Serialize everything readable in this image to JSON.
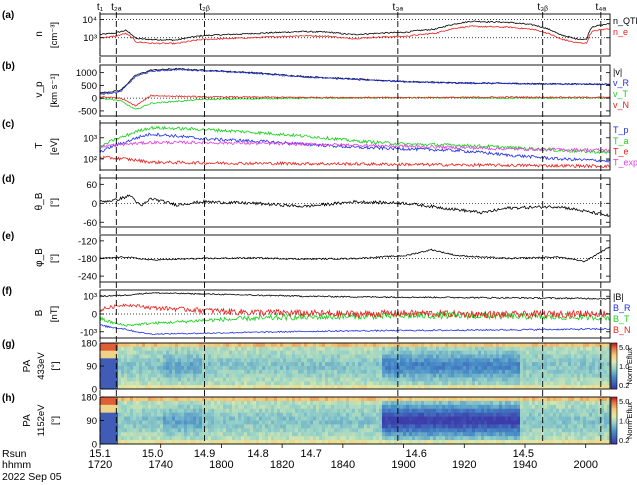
{
  "figure": {
    "date_label": "2022 Sep 05",
    "row_label_rsun": "Rsun",
    "row_label_time": "hhmm"
  },
  "colors": {
    "black": "#000000",
    "red": "#e8201c",
    "blue": "#1e2ee6",
    "green": "#18d018",
    "magenta": "#e040e0",
    "bg": "#ffffff"
  },
  "chart_data": [
    {
      "type": "line",
      "panel": "(a)",
      "ylabel": "n",
      "yunit": "[cm⁻³]",
      "yscale": "log",
      "ylim": [
        100,
        20000
      ],
      "yticks": [
        "10⁴",
        "10³"
      ],
      "dotted_levels": [
        10000,
        1000
      ],
      "series": [
        {
          "name": "n_QTN",
          "color": "black",
          "x": [
            0,
            0.03,
            0.05,
            0.07,
            0.1,
            0.15,
            0.2,
            0.3,
            0.4,
            0.45,
            0.48,
            0.5,
            0.55,
            0.6,
            0.62,
            0.66,
            0.7,
            0.73,
            0.76,
            0.8,
            0.85,
            0.9,
            0.93,
            0.955,
            0.965,
            0.985,
            1.0
          ],
          "y": [
            1500,
            1800,
            2500,
            900,
            800,
            750,
            1300,
            1700,
            2200,
            2000,
            1600,
            1500,
            1800,
            2000,
            2400,
            3000,
            6000,
            8000,
            7500,
            7000,
            5000,
            1500,
            900,
            800,
            4000,
            5000,
            6000
          ]
        },
        {
          "name": "n_e",
          "color": "red",
          "x": [
            0,
            0.03,
            0.05,
            0.07,
            0.1,
            0.15,
            0.2,
            0.3,
            0.4,
            0.45,
            0.48,
            0.5,
            0.55,
            0.6,
            0.62,
            0.66,
            0.7,
            0.73,
            0.76,
            0.8,
            0.85,
            0.9,
            0.93,
            0.955,
            0.965,
            0.985,
            1.0
          ],
          "y": [
            1000,
            1200,
            1700,
            600,
            500,
            480,
            800,
            1000,
            1300,
            1200,
            950,
            900,
            1100,
            1200,
            1400,
            1800,
            3500,
            4200,
            4000,
            3800,
            2800,
            900,
            550,
            500,
            2200,
            2800,
            3200
          ]
        }
      ],
      "legend": [
        "n_QTN",
        "n_e"
      ]
    },
    {
      "type": "line",
      "panel": "(b)",
      "ylabel": "v_p",
      "yunit": "[km s⁻¹]",
      "ylim": [
        -700,
        1300
      ],
      "yticks": [
        1000,
        500,
        0,
        -500
      ],
      "dotted_levels": [
        0
      ],
      "series": [
        {
          "name": "|v|",
          "color": "black",
          "x": [
            0,
            0.04,
            0.07,
            0.1,
            0.15,
            0.2,
            0.3,
            0.4,
            0.5,
            0.6,
            0.7,
            0.8,
            0.9,
            1.0
          ],
          "y": [
            200,
            300,
            900,
            1100,
            1150,
            1100,
            1000,
            850,
            750,
            650,
            600,
            580,
            560,
            550
          ]
        },
        {
          "name": "v_R",
          "color": "blue",
          "x": [
            0,
            0.04,
            0.07,
            0.1,
            0.15,
            0.2,
            0.3,
            0.4,
            0.5,
            0.6,
            0.7,
            0.8,
            0.9,
            1.0
          ],
          "y": [
            150,
            250,
            850,
            1050,
            1120,
            1080,
            980,
            830,
            730,
            640,
            590,
            570,
            550,
            540
          ]
        },
        {
          "name": "v_T",
          "color": "green",
          "x": [
            0,
            0.04,
            0.07,
            0.1,
            0.2,
            0.4,
            0.6,
            0.8,
            1.0
          ],
          "y": [
            0,
            -100,
            -450,
            -200,
            -50,
            0,
            20,
            0,
            10
          ]
        },
        {
          "name": "v_N",
          "color": "red",
          "x": [
            0,
            0.04,
            0.07,
            0.1,
            0.2,
            0.4,
            0.6,
            0.8,
            1.0
          ],
          "y": [
            50,
            0,
            -300,
            100,
            50,
            30,
            20,
            40,
            30
          ]
        }
      ],
      "legend": [
        "|v|",
        "v_R",
        "v_T",
        "v_N"
      ]
    },
    {
      "type": "line",
      "panel": "(c)",
      "ylabel": "T",
      "yunit": "[eV]",
      "yscale": "log",
      "ylim": [
        30,
        5000
      ],
      "yticks": [
        "10³",
        "10²"
      ],
      "series": [
        {
          "name": "T_p",
          "color": "blue",
          "x": [
            0,
            0.05,
            0.1,
            0.2,
            0.3,
            0.4,
            0.5,
            0.6,
            0.7,
            0.8,
            0.9,
            1.0
          ],
          "y": [
            200,
            600,
            1500,
            900,
            700,
            500,
            350,
            300,
            250,
            150,
            100,
            80
          ]
        },
        {
          "name": "T_a",
          "color": "green",
          "x": [
            0,
            0.05,
            0.1,
            0.2,
            0.3,
            0.4,
            0.5,
            0.6,
            0.7,
            0.8,
            0.9,
            1.0
          ],
          "y": [
            300,
            1200,
            3000,
            2500,
            1800,
            1200,
            700,
            500,
            450,
            350,
            250,
            200
          ]
        },
        {
          "name": "T_e",
          "color": "red",
          "x": [
            0,
            0.05,
            0.1,
            0.2,
            0.3,
            0.4,
            0.5,
            0.6,
            0.7,
            0.8,
            0.9,
            1.0
          ],
          "y": [
            120,
            100,
            70,
            65,
            62,
            60,
            58,
            55,
            52,
            50,
            48,
            45
          ]
        },
        {
          "name": "T_exp",
          "color": "magenta",
          "x": [
            0,
            0.05,
            0.1,
            0.2,
            0.3,
            0.4,
            0.5,
            0.6,
            0.7,
            0.8,
            0.9,
            1.0
          ],
          "y": [
            400,
            500,
            600,
            600,
            550,
            500,
            450,
            400,
            350,
            300,
            280,
            260
          ]
        }
      ],
      "legend": [
        "T_p",
        "T_a",
        "T_e",
        "T_exp"
      ]
    },
    {
      "type": "line",
      "panel": "(d)",
      "ylabel": "θ_B",
      "yunit": "[°]",
      "ylim": [
        -75,
        80
      ],
      "yticks": [
        60,
        0,
        -60
      ],
      "dotted_levels": [
        0
      ],
      "series": [
        {
          "name": "theta_B",
          "color": "black",
          "x": [
            0,
            0.03,
            0.06,
            0.08,
            0.1,
            0.15,
            0.2,
            0.3,
            0.4,
            0.5,
            0.6,
            0.7,
            0.75,
            0.8,
            0.9,
            0.95,
            1.0
          ],
          "y": [
            5,
            10,
            25,
            -10,
            15,
            -5,
            5,
            0,
            -10,
            5,
            0,
            -20,
            -30,
            -15,
            -10,
            -25,
            -40
          ]
        }
      ]
    },
    {
      "type": "line",
      "panel": "(e)",
      "ylabel": "φ_B",
      "yunit": "[°]",
      "ylim": [
        -260,
        -100
      ],
      "yticks": [
        -120,
        -180,
        -240
      ],
      "dotted_levels": [
        -180
      ],
      "series": [
        {
          "name": "phi_B",
          "color": "black",
          "x": [
            0,
            0.05,
            0.1,
            0.2,
            0.3,
            0.4,
            0.5,
            0.6,
            0.65,
            0.7,
            0.8,
            0.9,
            0.95,
            1.0
          ],
          "y": [
            -180,
            -175,
            -185,
            -180,
            -178,
            -182,
            -180,
            -170,
            -150,
            -170,
            -180,
            -175,
            -190,
            -140
          ]
        }
      ]
    },
    {
      "type": "line",
      "panel": "(f)",
      "ylabel": "B",
      "yunit": "[nT]",
      "yscale": "symlog",
      "ylim": [
        -3000,
        3000
      ],
      "yticks": [
        "10³",
        "0",
        "-10³"
      ],
      "dotted_levels": [
        0
      ],
      "series": [
        {
          "name": "|B|",
          "color": "black",
          "x": [
            0,
            0.05,
            0.1,
            0.2,
            0.3,
            0.4,
            0.5,
            0.6,
            0.7,
            0.8,
            0.9,
            1.0
          ],
          "y": [
            1000,
            1200,
            1800,
            1500,
            1200,
            1000,
            900,
            850,
            800,
            750,
            700,
            650
          ]
        },
        {
          "name": "B_R",
          "color": "blue",
          "x": [
            0,
            0.05,
            0.1,
            0.2,
            0.3,
            0.4,
            0.5,
            0.6,
            0.7,
            0.8,
            0.9,
            1.0
          ],
          "y": [
            -300,
            -600,
            -1500,
            -1300,
            -1100,
            -950,
            -850,
            -800,
            -750,
            -700,
            -650,
            -600
          ]
        },
        {
          "name": "B_T",
          "color": "green",
          "x": [
            0,
            0.05,
            0.1,
            0.2,
            0.3,
            0.4,
            0.5,
            0.6,
            0.7,
            0.8,
            0.9,
            1.0
          ],
          "y": [
            -50,
            -300,
            -200,
            -100,
            -60,
            -40,
            -30,
            -20,
            -20,
            -30,
            -40,
            -50
          ]
        },
        {
          "name": "B_N",
          "color": "red",
          "x": [
            0,
            0.05,
            0.1,
            0.2,
            0.3,
            0.4,
            0.5,
            0.6,
            0.7,
            0.8,
            0.9,
            1.0
          ],
          "y": [
            50,
            200,
            100,
            50,
            20,
            10,
            0,
            10,
            0,
            -10,
            0,
            10
          ]
        }
      ],
      "legend": [
        "|B|",
        "B_R",
        "B_T",
        "B_N"
      ]
    },
    {
      "type": "heatmap",
      "panel": "(g)",
      "ylabel": "PA",
      "ylabel2": "433eV",
      "yunit": "[°]",
      "ylim": [
        0,
        180
      ],
      "yticks": [
        180,
        90,
        0
      ],
      "colorbar_label": "Norm Eflux",
      "colorbar_ticks": [
        "5.0",
        "1.0",
        "0.2"
      ]
    },
    {
      "type": "heatmap",
      "panel": "(h)",
      "ylabel": "PA",
      "ylabel2": "1152eV",
      "yunit": "[°]",
      "ylim": [
        0,
        180
      ],
      "yticks": [
        180,
        90,
        0
      ],
      "colorbar_label": "Norm Eflux",
      "colorbar_ticks": [
        "5.0",
        "1.0",
        "0.2"
      ]
    }
  ],
  "events": [
    {
      "label": "t₁",
      "x": 0.0
    },
    {
      "label": "t₂ₐ",
      "x": 0.032
    },
    {
      "label": "t₂ᵦ",
      "x": 0.205
    },
    {
      "label": "t₃ₐ",
      "x": 0.584
    },
    {
      "label": "t₃ᵦ",
      "x": 0.868
    },
    {
      "label": "t₄ₐ",
      "x": 0.982
    }
  ],
  "x_axis": {
    "rsun_ticks": [
      "15.1",
      "15.0",
      "14.9",
      "14.8",
      "14.7",
      "14.6",
      "14.5",
      "14.4",
      "14.3",
      "14.2",
      "14.1",
      "14.0",
      "13.9",
      "13.8"
    ],
    "time_ticks": [
      "1720",
      "1740",
      "1800",
      "1820",
      "1840",
      "1900",
      "1920",
      "1940",
      "2000"
    ],
    "rsun_labels_shown": [
      "15.1",
      "15.0",
      "14.9",
      "14.8",
      "14.7",
      "14.6",
      "14.5"
    ],
    "time_labels_shown": [
      "1720",
      "1740",
      "1800",
      "1820",
      "1840",
      "1900",
      "1920",
      "1940",
      "2000"
    ]
  }
}
